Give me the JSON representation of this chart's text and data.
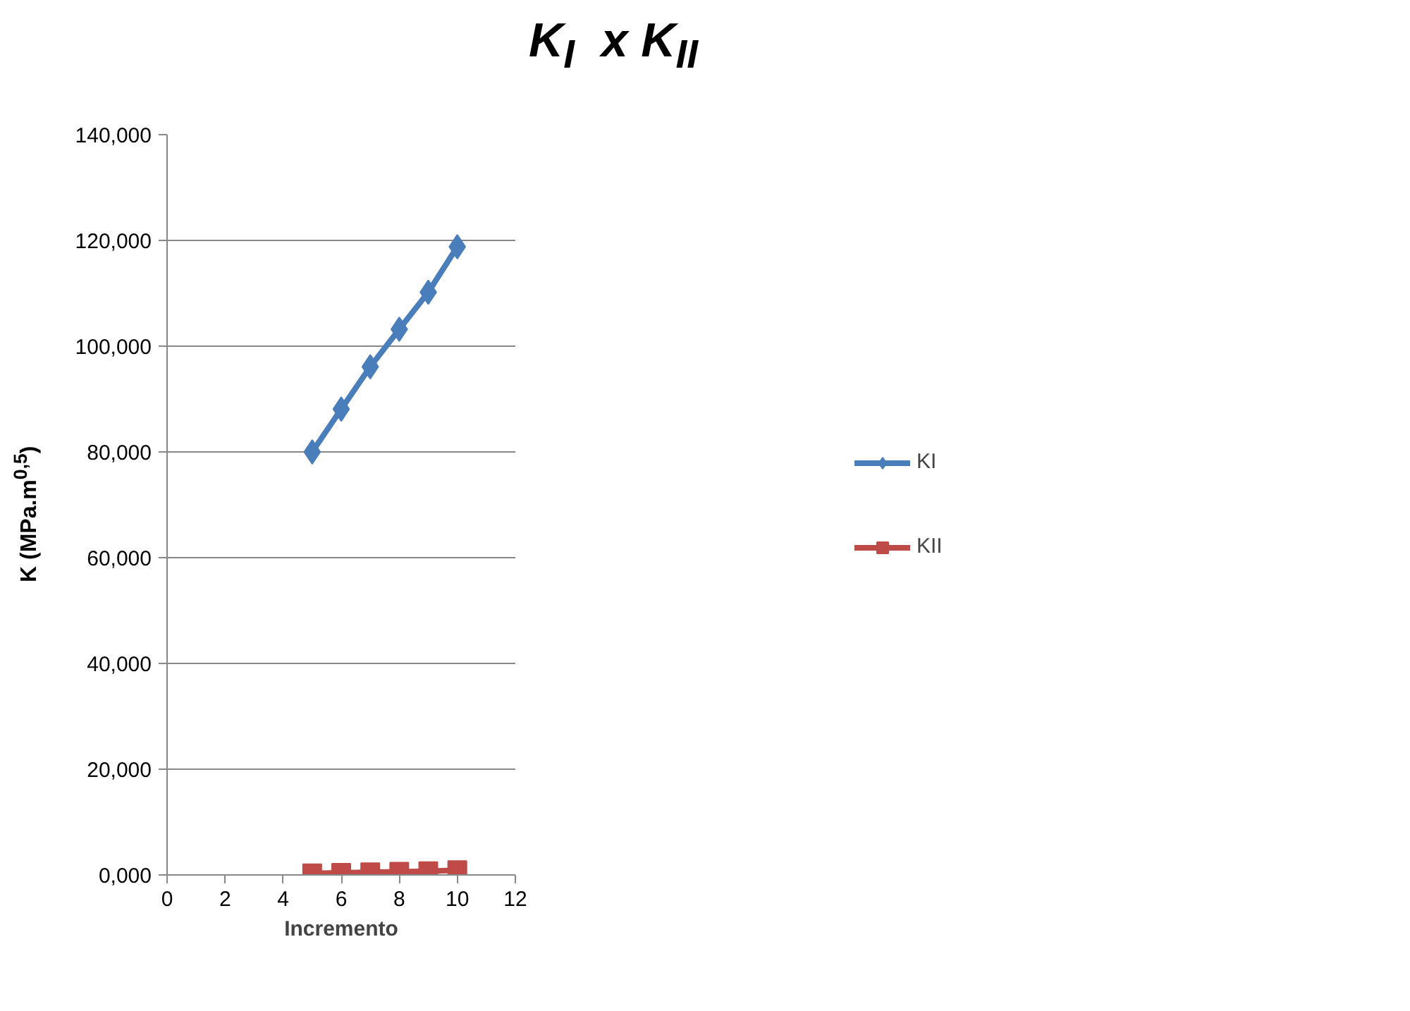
{
  "chart_data": {
    "type": "line",
    "title": "K$_{I}$  x K$_{II}$",
    "xlabel": "Incremento",
    "ylabel": "K (MPa.m$^{0,5}$)",
    "x": [
      5,
      6,
      7,
      8,
      9,
      10
    ],
    "series": [
      {
        "name": "KI",
        "color": "#4a7ebb",
        "marker": "diamond",
        "values": [
          80,
          88.1,
          96.1,
          103.2,
          110.2,
          118.8
        ]
      },
      {
        "name": "KII",
        "color": "#be4b48",
        "marker": "square",
        "values": [
          0.3,
          0.4,
          0.5,
          0.6,
          0.7,
          0.9
        ]
      }
    ],
    "xlim": [
      0,
      12
    ],
    "xticks": [
      0,
      2,
      4,
      6,
      8,
      10,
      12
    ],
    "ylim": [
      0,
      140
    ],
    "yticks": [
      {
        "value": 0,
        "label": "0,000"
      },
      {
        "value": 20,
        "label": "20,000"
      },
      {
        "value": 40,
        "label": "40,000"
      },
      {
        "value": 60,
        "label": "60,000"
      },
      {
        "value": 80,
        "label": "80,000"
      },
      {
        "value": 100,
        "label": "100,000"
      },
      {
        "value": 120,
        "label": "120,000"
      },
      {
        "value": 140,
        "label": "140,000"
      }
    ],
    "grid": "y",
    "legend": "right",
    "line_style": "solid"
  }
}
